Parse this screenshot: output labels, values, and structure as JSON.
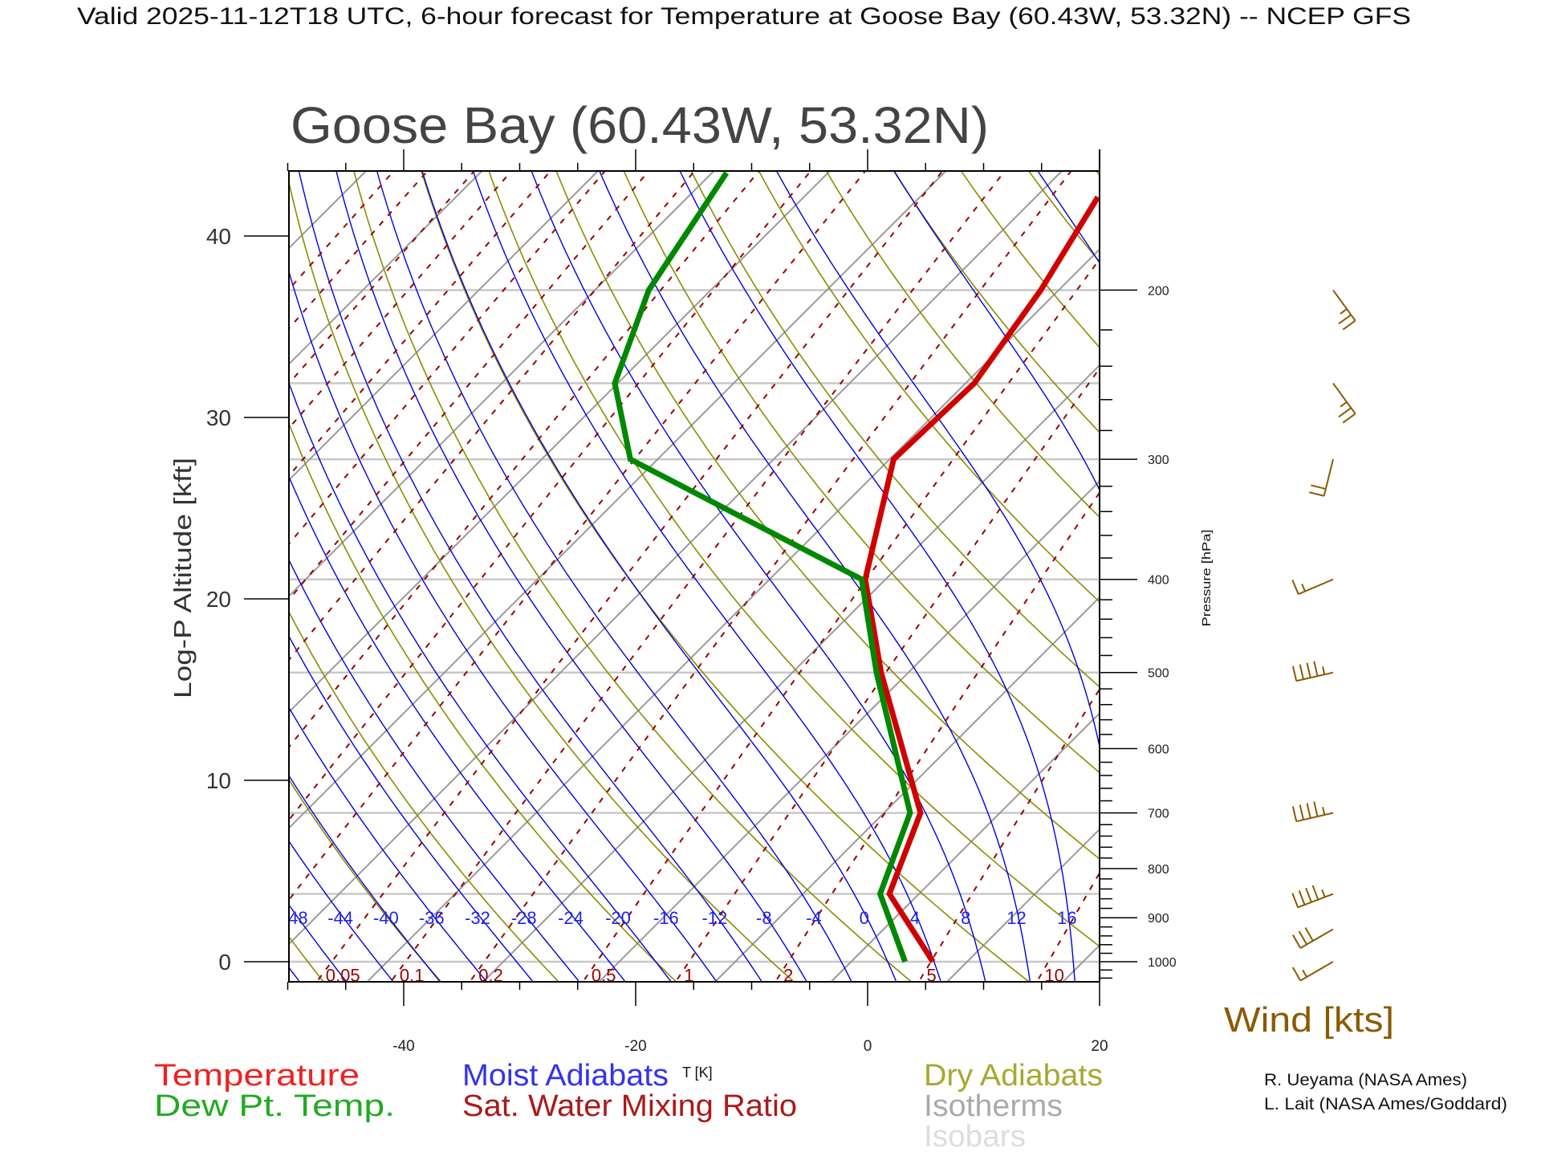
{
  "header": {
    "title": "Valid 2025-11-12T18 UTC, 6-hour forecast for Temperature at Goose Bay (60.43W, 53.32N) -- NCEP GFS",
    "station_title": "Goose Bay (60.43W, 53.32N)"
  },
  "chart_data": {
    "type": "skew-t",
    "title": "Goose Bay (60.43W, 53.32N)",
    "xlabel": "T [K]",
    "ylabel": "Log-P Altitude [kft]",
    "y2label": "Pressure [hPa]",
    "xlim": [
      -50,
      20
    ],
    "xticks": [
      "-40",
      "-20",
      "0",
      "20"
    ],
    "xtick_values": [
      -40,
      -20,
      0,
      20
    ],
    "ylim_hpa": [
      1050,
      150
    ],
    "yticks_kft": [
      "0",
      "10",
      "20",
      "30",
      "40"
    ],
    "ytick_values_kft": [
      0,
      10,
      20,
      30,
      40
    ],
    "pressure_labels": [
      "200",
      "300",
      "400",
      "500",
      "600",
      "700",
      "800",
      "900",
      "1000"
    ],
    "pressure_label_values": [
      200,
      300,
      400,
      500,
      600,
      700,
      800,
      900,
      1000
    ],
    "isobars_hpa": [
      200,
      250,
      300,
      400,
      500,
      700,
      850,
      1000
    ],
    "isotherm_step_K": 10,
    "dry_adiabat_step_C": 10,
    "moist_adiabat_labels": [
      "-48",
      "-44",
      "-40",
      "-36",
      "-32",
      "-28",
      "-24",
      "-20",
      "-16",
      "-12",
      "-8",
      "-4",
      "0",
      "4",
      "8",
      "12",
      "16"
    ],
    "moist_adiabat_values": [
      -48,
      -44,
      -40,
      -36,
      -32,
      -28,
      -24,
      -20,
      -16,
      -12,
      -8,
      -4,
      0,
      4,
      8,
      12,
      16
    ],
    "mixing_ratio_labels": [
      "0.05",
      "0.1",
      "0.2",
      "0.5",
      "1",
      "2",
      "5",
      "10"
    ],
    "mixing_ratio_values": [
      0.05,
      0.1,
      0.2,
      0.5,
      1,
      2,
      5,
      10
    ],
    "series": [
      {
        "name": "Temperature",
        "color": "#d00000",
        "pressure": [
          1000,
          850,
          700,
          500,
          400,
          300,
          250,
          200,
          160
        ],
        "values": [
          3.9,
          -5.7,
          -10.0,
          -25.5,
          -34.9,
          -42.8,
          -42.4,
          -44.7,
          -47.8
        ]
      },
      {
        "name": "Dew Pt. Temp.",
        "color": "#008800",
        "pressure": [
          1000,
          850,
          700,
          500,
          400,
          300,
          250,
          200,
          151
        ],
        "values": [
          1.5,
          -6.5,
          -10.9,
          -25.9,
          -35.2,
          -65.5,
          -73.4,
          -78.5,
          -81.9
        ]
      }
    ],
    "wind": {
      "label": "Wind [kts]",
      "color": "#8b5a00",
      "pressure": [
        1000,
        925,
        850,
        700,
        500,
        400,
        300,
        250,
        200
      ],
      "speed_kts": [
        15,
        30,
        45,
        45,
        45,
        15,
        20,
        25,
        25
      ],
      "direction_deg": [
        240,
        240,
        249,
        257,
        257,
        247,
        194,
        144,
        144
      ]
    }
  },
  "legend": {
    "temperature": "Temperature",
    "dewpoint": "Dew Pt. Temp.",
    "moist_adiabats": "Moist Adiabats",
    "mixing_ratio": "Sat. Water Mixing Ratio",
    "dry_adiabats": "Dry Adiabats",
    "isotherms": "Isotherms",
    "isobars": "Isobars"
  },
  "credits": {
    "line1": "R. Ueyama (NASA Ames)",
    "line2": "L. Lait (NASA Ames/Goddard)"
  },
  "colors": {
    "temperature": "#d00000",
    "dewpoint": "#008800",
    "moist": "#0000dd",
    "dry": "#8c8c00",
    "isotherm": "#999999",
    "isobar": "#c8c8c8",
    "mixing": "#990000",
    "wind": "#8b5a00"
  }
}
